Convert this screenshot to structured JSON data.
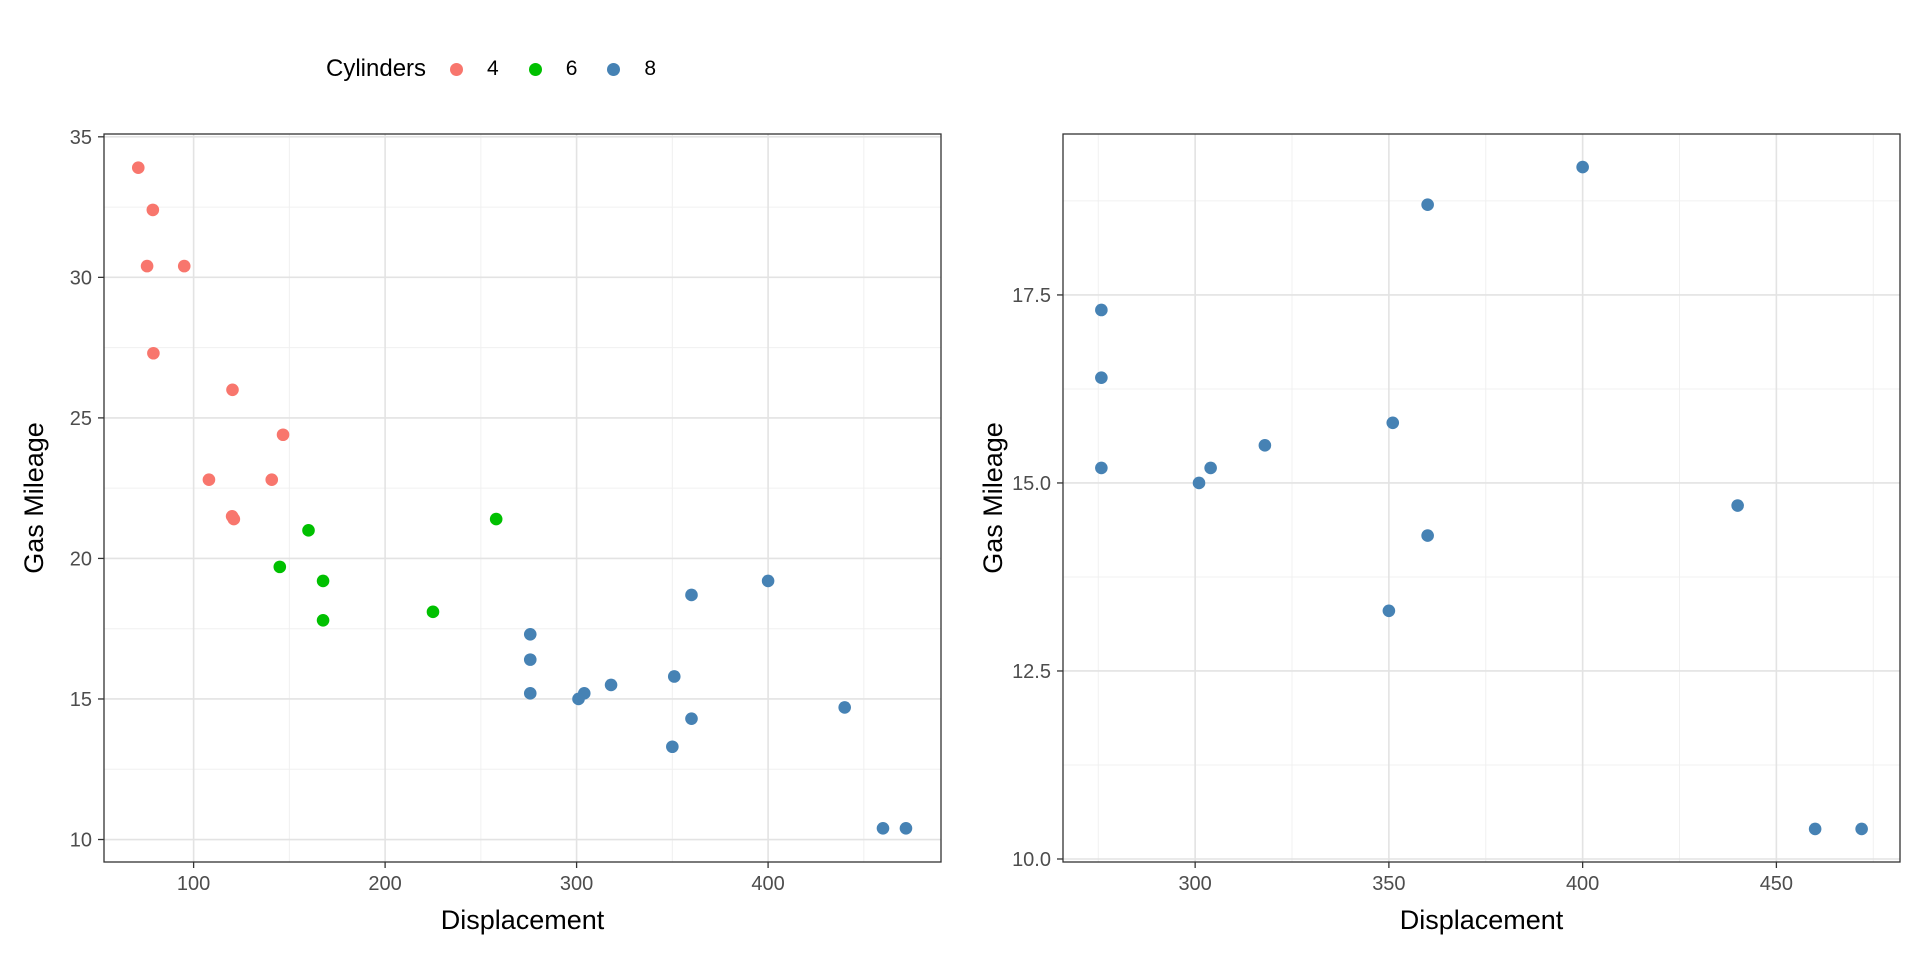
{
  "legend": {
    "title": "Cylinders",
    "items": [
      {
        "label": "4",
        "color": "#F8766D"
      },
      {
        "label": "6",
        "color": "#00C000"
      },
      {
        "label": "8",
        "color": "#4682B4"
      }
    ]
  },
  "chart_data": [
    {
      "type": "scatter",
      "title": "",
      "xlabel": "Displacement",
      "ylabel": "Gas Mileage",
      "xlim": [
        53.2,
        490.3
      ],
      "ylim": [
        9.2,
        35.1
      ],
      "xticks": [
        100,
        200,
        300,
        400
      ],
      "yticks": [
        10,
        15,
        20,
        25,
        30,
        35
      ],
      "xticks_minor": [
        50,
        150,
        250,
        350,
        450
      ],
      "yticks_minor": [
        12.5,
        17.5,
        22.5,
        27.5,
        32.5
      ],
      "grid": true,
      "legend_position": "top",
      "series": [
        {
          "name": "4",
          "color": "#F8766D",
          "points": [
            [
              71.1,
              33.9
            ],
            [
              78.7,
              32.4
            ],
            [
              75.7,
              30.4
            ],
            [
              95.1,
              30.4
            ],
            [
              79,
              27.3
            ],
            [
              120.3,
              26
            ],
            [
              146.7,
              24.4
            ],
            [
              108,
              22.8
            ],
            [
              140.8,
              22.8
            ],
            [
              120.1,
              21.5
            ],
            [
              121,
              21.4
            ]
          ]
        },
        {
          "name": "6",
          "color": "#00C000",
          "points": [
            [
              160,
              21
            ],
            [
              258,
              21.4
            ],
            [
              145,
              19.7
            ],
            [
              167.6,
              19.2
            ],
            [
              225,
              18.1
            ],
            [
              167.6,
              17.8
            ]
          ]
        },
        {
          "name": "8",
          "color": "#4682B4",
          "points": [
            [
              360,
              18.7
            ],
            [
              400,
              19.2
            ],
            [
              275.8,
              17.3
            ],
            [
              275.8,
              16.4
            ],
            [
              351,
              15.8
            ],
            [
              318,
              15.5
            ],
            [
              304,
              15.2
            ],
            [
              275.8,
              15.2
            ],
            [
              301,
              15
            ],
            [
              360,
              14.3
            ],
            [
              440,
              14.7
            ],
            [
              350,
              13.3
            ],
            [
              460,
              10.4
            ],
            [
              472,
              10.4
            ]
          ]
        }
      ]
    },
    {
      "type": "scatter",
      "title": "",
      "xlabel": "Displacement",
      "ylabel": "Gas Mileage",
      "xlim": [
        265.9,
        481.9
      ],
      "ylim": [
        9.96,
        19.64
      ],
      "xticks": [
        300,
        350,
        400,
        450
      ],
      "yticks": [
        10.0,
        12.5,
        15.0,
        17.5
      ],
      "ytick_labels": [
        "10.0",
        "12.5",
        "15.0",
        "17.5"
      ],
      "xticks_minor": [
        275,
        325,
        375,
        425,
        475
      ],
      "yticks_minor": [
        11.25,
        13.75,
        16.25,
        18.75
      ],
      "grid": true,
      "series": [
        {
          "name": "8",
          "color": "#4682B4",
          "points": [
            [
              360,
              18.7
            ],
            [
              400,
              19.2
            ],
            [
              275.8,
              17.3
            ],
            [
              275.8,
              16.4
            ],
            [
              351,
              15.8
            ],
            [
              318,
              15.5
            ],
            [
              304,
              15.2
            ],
            [
              275.8,
              15.2
            ],
            [
              301,
              15
            ],
            [
              360,
              14.3
            ],
            [
              440,
              14.7
            ],
            [
              350,
              13.3
            ],
            [
              460,
              10.4
            ],
            [
              472,
              10.4
            ]
          ]
        }
      ]
    }
  ]
}
